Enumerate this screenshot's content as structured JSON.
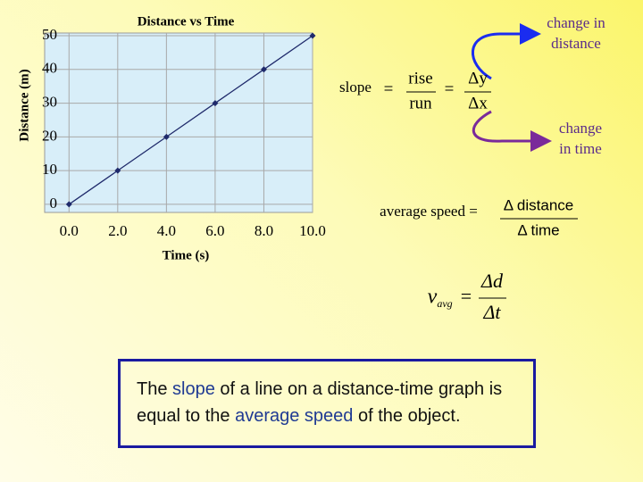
{
  "chart_data": {
    "type": "line",
    "title": "Distance vs Time",
    "x_label": "Time (s)",
    "y_label": "Distance (m)",
    "x": [
      0,
      2,
      4,
      6,
      8,
      10
    ],
    "series": [
      {
        "name": "Distance",
        "color": "#1f2a6b",
        "values": [
          0,
          10,
          20,
          30,
          40,
          50
        ]
      }
    ],
    "xlim": [
      -1,
      10
    ],
    "xticks": [
      {
        "value": 0,
        "label": "0.0"
      },
      {
        "value": 2,
        "label": "2.0"
      },
      {
        "value": 4,
        "label": "4.0"
      },
      {
        "value": 6,
        "label": "6.0"
      },
      {
        "value": 8,
        "label": "8.0"
      },
      {
        "value": 10,
        "label": "10.0"
      }
    ],
    "ylim": [
      -2.4,
      50.8
    ],
    "yticks": [
      0,
      10,
      20,
      30,
      40,
      50
    ],
    "grid": true
  },
  "annotations": {
    "change_distance": [
      "change in",
      "distance"
    ],
    "change_time": [
      "change",
      "in time"
    ]
  },
  "slope_formula": {
    "label": "slope",
    "eq1": "=",
    "rise": "rise",
    "run": "run",
    "eq2": "=",
    "dy": "Δy",
    "dx": "Δx"
  },
  "speed_formula": {
    "label": "average speed =",
    "numerator": "Δ distance",
    "denominator": "Δ time"
  },
  "vavg_formula": {
    "v": "v",
    "sub": "avg",
    "eq": "=",
    "numerator": "Δd",
    "denominator": "Δt"
  },
  "box": {
    "parts": [
      "The ",
      "slope",
      " of a line on a distance-time graph is equal to the ",
      "average speed",
      " of the object."
    ]
  }
}
